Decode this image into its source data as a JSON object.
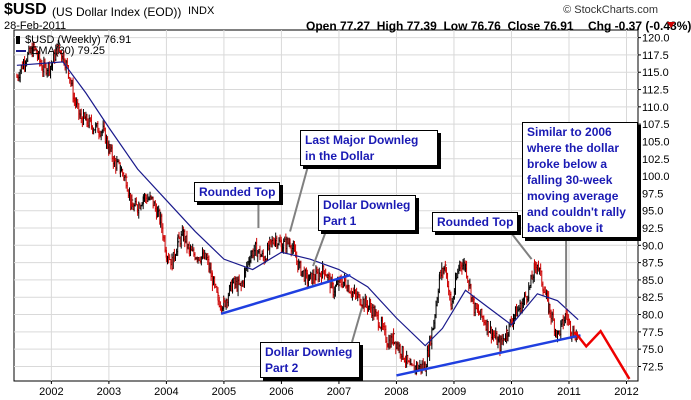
{
  "header": {
    "ticker": "$USD",
    "description": "(US Dollar Index (EOD))",
    "exchange": "INDX",
    "date": "28-Feb-2011",
    "watermark": "© StockCharts.com",
    "open_label": "Open",
    "open": "77.27",
    "high_label": "High",
    "high": "77.39",
    "low_label": "Low",
    "low": "76.76",
    "close_label": "Close",
    "close": "76.91",
    "chg_label": "Chg",
    "chg": "-0.37 (-0.48%)"
  },
  "legend": {
    "price": "$USD (Weekly) 76.91",
    "ema": "EMA(30) 79.25"
  },
  "colors": {
    "price_up": "#000000",
    "price_down": "#cc0000",
    "ema": "#1a1a8c",
    "trendline": "#1f3fe0",
    "projection": "#ee0000",
    "callout_text": "#1a1ab4",
    "grid": "#d9d9d9"
  },
  "chart_data": {
    "type": "line",
    "title": "$USD (US Dollar Index (EOD))",
    "x_axis": {
      "ticks": [
        "2002",
        "2003",
        "2004",
        "2005",
        "2006",
        "2007",
        "2008",
        "2009",
        "2010",
        "2011",
        "2012"
      ],
      "range": [
        2001.35,
        2012.2
      ]
    },
    "y_axis": {
      "position": "right",
      "range": [
        70.4,
        121.1
      ],
      "ticks": [
        "72.5",
        "75.0",
        "77.5",
        "80.0",
        "82.5",
        "85.0",
        "87.5",
        "90.0",
        "92.5",
        "95.0",
        "97.5",
        "100.0",
        "102.5",
        "105.0",
        "107.5",
        "110.0",
        "112.5",
        "115.0",
        "117.5",
        "120.0"
      ]
    },
    "grid": true,
    "series": [
      {
        "name": "$USD (Weekly)",
        "style": "bars",
        "points": [
          [
            2001.4,
            114.3
          ],
          [
            2001.55,
            117.0
          ],
          [
            2001.7,
            118.5
          ],
          [
            2001.85,
            115.5
          ],
          [
            2002.0,
            116.0
          ],
          [
            2002.1,
            118.5
          ],
          [
            2002.2,
            117.5
          ],
          [
            2002.3,
            115.0
          ],
          [
            2002.4,
            111.0
          ],
          [
            2002.5,
            108.5
          ],
          [
            2002.6,
            108.0
          ],
          [
            2002.75,
            107.0
          ],
          [
            2002.9,
            106.5
          ],
          [
            2003.0,
            104.0
          ],
          [
            2003.1,
            102.0
          ],
          [
            2003.2,
            101.0
          ],
          [
            2003.3,
            99.5
          ],
          [
            2003.4,
            95.5
          ],
          [
            2003.5,
            95.5
          ],
          [
            2003.6,
            97.0
          ],
          [
            2003.75,
            96.5
          ],
          [
            2003.9,
            93.5
          ],
          [
            2004.0,
            89.0
          ],
          [
            2004.1,
            87.5
          ],
          [
            2004.2,
            90.5
          ],
          [
            2004.3,
            91.5
          ],
          [
            2004.4,
            89.0
          ],
          [
            2004.55,
            88.5
          ],
          [
            2004.7,
            88.0
          ],
          [
            2004.8,
            85.0
          ],
          [
            2004.9,
            82.0
          ],
          [
            2005.0,
            81.5
          ],
          [
            2005.15,
            84.5
          ],
          [
            2005.3,
            84.0
          ],
          [
            2005.45,
            88.5
          ],
          [
            2005.55,
            89.5
          ],
          [
            2005.7,
            88.0
          ],
          [
            2005.8,
            90.0
          ],
          [
            2005.9,
            91.0
          ],
          [
            2006.0,
            90.0
          ],
          [
            2006.15,
            90.5
          ],
          [
            2006.3,
            87.0
          ],
          [
            2006.45,
            85.0
          ],
          [
            2006.6,
            85.5
          ],
          [
            2006.75,
            86.5
          ],
          [
            2006.9,
            83.5
          ],
          [
            2007.0,
            84.5
          ],
          [
            2007.1,
            84.8
          ],
          [
            2007.25,
            83.0
          ],
          [
            2007.4,
            82.0
          ],
          [
            2007.55,
            81.0
          ],
          [
            2007.7,
            79.0
          ],
          [
            2007.85,
            76.0
          ],
          [
            2007.95,
            76.5
          ],
          [
            2008.1,
            74.5
          ],
          [
            2008.25,
            72.0
          ],
          [
            2008.35,
            72.5
          ],
          [
            2008.5,
            72.5
          ],
          [
            2008.65,
            79.0
          ],
          [
            2008.75,
            85.5
          ],
          [
            2008.85,
            87.0
          ],
          [
            2008.95,
            81.0
          ],
          [
            2009.1,
            87.5
          ],
          [
            2009.2,
            87.0
          ],
          [
            2009.35,
            81.0
          ],
          [
            2009.5,
            79.5
          ],
          [
            2009.65,
            77.5
          ],
          [
            2009.8,
            75.5
          ],
          [
            2009.92,
            77.5
          ],
          [
            2010.05,
            80.0
          ],
          [
            2010.15,
            81.0
          ],
          [
            2010.3,
            83.5
          ],
          [
            2010.4,
            86.5
          ],
          [
            2010.45,
            87.5
          ],
          [
            2010.55,
            84.0
          ],
          [
            2010.65,
            81.0
          ],
          [
            2010.8,
            77.0
          ],
          [
            2010.88,
            78.5
          ],
          [
            2010.95,
            80.0
          ],
          [
            2011.05,
            77.5
          ],
          [
            2011.16,
            76.91
          ]
        ]
      },
      {
        "name": "EMA(30)",
        "style": "line",
        "points": [
          [
            2001.4,
            116.0
          ],
          [
            2002.2,
            116.5
          ],
          [
            2002.6,
            112.0
          ],
          [
            2003.0,
            107.0
          ],
          [
            2003.5,
            101.0
          ],
          [
            2004.0,
            96.5
          ],
          [
            2004.5,
            92.0
          ],
          [
            2005.0,
            88.0
          ],
          [
            2005.5,
            86.5
          ],
          [
            2006.0,
            89.0
          ],
          [
            2006.5,
            88.0
          ],
          [
            2007.0,
            86.5
          ],
          [
            2007.5,
            84.0
          ],
          [
            2008.0,
            79.5
          ],
          [
            2008.5,
            75.5
          ],
          [
            2008.8,
            78.0
          ],
          [
            2009.2,
            83.5
          ],
          [
            2009.6,
            81.0
          ],
          [
            2010.0,
            78.5
          ],
          [
            2010.45,
            83.0
          ],
          [
            2010.8,
            82.0
          ],
          [
            2011.16,
            79.25
          ]
        ]
      }
    ],
    "trendlines": [
      {
        "color": "trendline",
        "points": [
          [
            2004.95,
            80.1
          ],
          [
            2007.2,
            85.7
          ]
        ]
      },
      {
        "color": "trendline",
        "points": [
          [
            2008.0,
            71.2
          ],
          [
            2011.2,
            77.0
          ]
        ]
      }
    ],
    "projection": {
      "points": [
        [
          2011.1,
          77.5
        ],
        [
          2011.3,
          75.4
        ],
        [
          2011.55,
          77.6
        ],
        [
          2012.05,
          70.7
        ]
      ]
    },
    "annotations": [
      {
        "text": "Rounded Top",
        "lines": [
          "Rounded Top"
        ],
        "box": "rt1",
        "target": [
          2005.6,
          92.5
        ]
      },
      {
        "text": "Last Major Downleg in the Dollar",
        "lines": [
          "Last Major Downleg",
          "in the Dollar"
        ],
        "box": "lmd",
        "target": [
          2006.15,
          92.0
        ]
      },
      {
        "text": "Dollar Downleg Part 1",
        "lines": [
          "Dollar Downleg",
          "Part 1"
        ],
        "box": "dp1",
        "target": [
          2006.55,
          87.0
        ]
      },
      {
        "text": "Rounded Top",
        "lines": [
          "Rounded Top"
        ],
        "box": "rt2",
        "target": [
          2010.35,
          88.0
        ]
      },
      {
        "text": "Similar to 2006 where the dollar broke below a falling 30-week moving average and couldn't rally back above it",
        "lines": [
          "Similar to 2006",
          "where the dollar",
          "broke below a",
          "falling 30-week",
          "moving average",
          "and couldn't rally",
          "back above it"
        ],
        "box": "sim",
        "target": [
          2010.95,
          81.0
        ]
      },
      {
        "text": "Dollar Downleg Part 2",
        "lines": [
          "Dollar Downleg",
          "Part 2"
        ],
        "box": "dp2",
        "target": [
          2007.4,
          81.0
        ]
      }
    ]
  }
}
